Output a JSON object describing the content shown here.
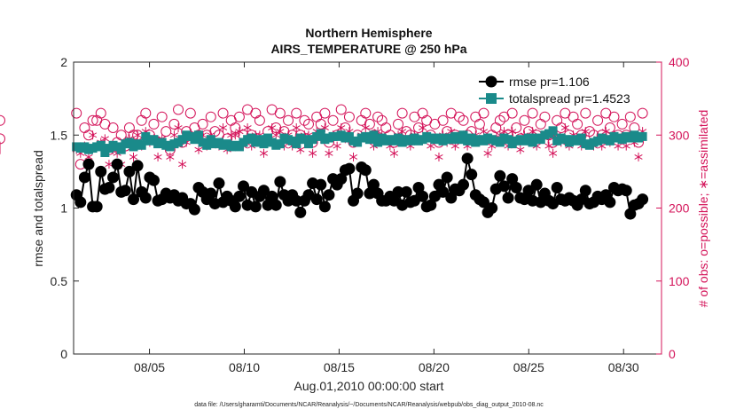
{
  "chart_data": {
    "type": "line",
    "title": "Northern Hemisphere",
    "subtitle": "AIRS_TEMPERATURE @ 250 hPa",
    "xlabel": "Aug.01,2010 00:00:00 start",
    "ylabel": "rmse and totalspread",
    "y2label": "# of obs: o=possible; ∗=assimilated",
    "footnote": "data file: /Users/gharamti/Documents/NCAR/Reanalysis/~/Documents/NCAR/Reanalysis/webpub/obs_diag_output_2010-08.nc",
    "xlim": [
      1,
      32
    ],
    "ylim": [
      0,
      2
    ],
    "y2lim": [
      0,
      400
    ],
    "xticks": [
      5,
      10,
      15,
      20,
      25,
      30
    ],
    "xticklabels": [
      "08/05",
      "08/10",
      "08/15",
      "08/20",
      "08/25",
      "08/30"
    ],
    "yticks": [
      0,
      0.5,
      1,
      1.5,
      2
    ],
    "yticklabels": [
      "0",
      "0.5",
      "1",
      "1.5",
      "2"
    ],
    "y2ticks": [
      0,
      100,
      200,
      300,
      400
    ],
    "y2ticklabels": [
      "0",
      "100",
      "200",
      "300",
      "400"
    ],
    "legend_position": "top-right",
    "colors": {
      "rmse": "#000000",
      "spread": "#1a8a8a",
      "obs": "#d4145a"
    },
    "series": [
      {
        "name": "rmse pr=1.106",
        "axis": "left",
        "marker": "filled-circle"
      },
      {
        "name": "totalspread pr=1.4523",
        "axis": "left",
        "marker": "filled-square"
      }
    ],
    "rmse_values": [
      1.09,
      1.04,
      1.21,
      1.3,
      1.01,
      1.01,
      1.25,
      1.13,
      1.14,
      1.21,
      1.3,
      1.11,
      1.12,
      1.25,
      1.06,
      1.29,
      1.11,
      1.07,
      1.21,
      1.19,
      1.05,
      1.06,
      1.1,
      1.07,
      1.09,
      1.05,
      1.07,
      1.03,
      1.03,
      0.99,
      1.14,
      1.11,
      1.06,
      1.1,
      1.03,
      1.17,
      1.04,
      1.08,
      1.05,
      1.01,
      1.08,
      1.15,
      1.02,
      1.11,
      1.01,
      1.08,
      1.12,
      1.02,
      1.08,
      1.02,
      1.18,
      1.09,
      1.05,
      1.09,
      1.05,
      0.97,
      1.05,
      1.09,
      1.17,
      1.06,
      1.16,
      1.01,
      1.09,
      1.2,
      1.16,
      1.2,
      1.26,
      1.27,
      1.05,
      1.1,
      1.28,
      1.26,
      1.1,
      1.16,
      1.1,
      1.05,
      1.05,
      1.08,
      1.05,
      1.11,
      1.02,
      1.11,
      1.04,
      1.05,
      1.14,
      1.08,
      1.01,
      1.02,
      1.08,
      1.16,
      1.11,
      1.21,
      1.07,
      1.13,
      1.12,
      1.16,
      1.34,
      1.23,
      1.09,
      1.06,
      1.04,
      0.97,
      1.0,
      1.13,
      1.22,
      1.15,
      1.07,
      1.2,
      1.14,
      1.07,
      1.06,
      1.12,
      1.05,
      1.16,
      1.04,
      1.1,
      1.05,
      1.03,
      1.14,
      1.06,
      1.05,
      1.07,
      1.05,
      1.02,
      1.06,
      1.12,
      1.03,
      1.04,
      1.08,
      1.06,
      1.09,
      1.04,
      1.14,
      1.12,
      1.13,
      1.12,
      0.96,
      1.02,
      1.03,
      1.06
    ],
    "spread_values": [
      1.42,
      1.41,
      1.42,
      1.4,
      1.41,
      1.42,
      1.43,
      1.38,
      1.41,
      1.43,
      1.42,
      1.4,
      1.44,
      1.45,
      1.42,
      1.44,
      1.43,
      1.49,
      1.46,
      1.47,
      1.44,
      1.45,
      1.43,
      1.42,
      1.44,
      1.45,
      1.47,
      1.5,
      1.49,
      1.47,
      1.5,
      1.45,
      1.43,
      1.47,
      1.44,
      1.45,
      1.43,
      1.44,
      1.42,
      1.43,
      1.42,
      1.45,
      1.47,
      1.48,
      1.45,
      1.47,
      1.44,
      1.48,
      1.45,
      1.43,
      1.44,
      1.48,
      1.47,
      1.46,
      1.44,
      1.48,
      1.47,
      1.44,
      1.47,
      1.49,
      1.51,
      1.47,
      1.48,
      1.49,
      1.49,
      1.5,
      1.48,
      1.49,
      1.46,
      1.45,
      1.48,
      1.49,
      1.47,
      1.5,
      1.45,
      1.48,
      1.46,
      1.47,
      1.46,
      1.48,
      1.45,
      1.47,
      1.46,
      1.48,
      1.46,
      1.47,
      1.49,
      1.48,
      1.47,
      1.48,
      1.46,
      1.48,
      1.47,
      1.49,
      1.47,
      1.5,
      1.46,
      1.48,
      1.45,
      1.47,
      1.46,
      1.48,
      1.47,
      1.46,
      1.45,
      1.48,
      1.47,
      1.44,
      1.46,
      1.47,
      1.46,
      1.48,
      1.45,
      1.48,
      1.47,
      1.5,
      1.51,
      1.53,
      1.46,
      1.48,
      1.47,
      1.45,
      1.47,
      1.46,
      1.48,
      1.44,
      1.43,
      1.45,
      1.46,
      1.48,
      1.47,
      1.46,
      1.49,
      1.48,
      1.47,
      1.49,
      1.48,
      1.5,
      1.48,
      1.49
    ],
    "possible_values": [
      330,
      260,
      310,
      300,
      320,
      320,
      330,
      315,
      280,
      310,
      290,
      300,
      285,
      310,
      300,
      300,
      320,
      330,
      300,
      315,
      290,
      325,
      305,
      280,
      315,
      335,
      290,
      305,
      330,
      310,
      300,
      315,
      300,
      325,
      305,
      300,
      330,
      295,
      320,
      310,
      325,
      300,
      335,
      300,
      330,
      320,
      290,
      305,
      335,
      310,
      330,
      305,
      320,
      300,
      330,
      300,
      320,
      315,
      290,
      325,
      315,
      330,
      290,
      320,
      300,
      335,
      310,
      325,
      290,
      300,
      320,
      330,
      315,
      300,
      325,
      320,
      310,
      300,
      290,
      315,
      330,
      305,
      300,
      325,
      310,
      330,
      320,
      300,
      315,
      290,
      320,
      305,
      330,
      300,
      325,
      320,
      300,
      305,
      325,
      315,
      330,
      295,
      300,
      310,
      320,
      325,
      300,
      330,
      310,
      295,
      320,
      305,
      330,
      300,
      315,
      325,
      300,
      290,
      320,
      310,
      330,
      300,
      325,
      315,
      300,
      330,
      305,
      300,
      320,
      300,
      330,
      310,
      325,
      300,
      315,
      300,
      325,
      310,
      290,
      330,
      295,
      320
    ],
    "assimilated_values": [
      280,
      275,
      285,
      270,
      300,
      285,
      290,
      295,
      260,
      280,
      275,
      260,
      290,
      295,
      270,
      300,
      285,
      305,
      290,
      295,
      270,
      295,
      285,
      270,
      300,
      310,
      260,
      290,
      300,
      295,
      280,
      300,
      285,
      300,
      290,
      285,
      310,
      280,
      300,
      300,
      305,
      285,
      310,
      285,
      300,
      300,
      275,
      290,
      310,
      300,
      305,
      285,
      300,
      285,
      310,
      280,
      300,
      300,
      275,
      305,
      295,
      310,
      275,
      300,
      285,
      310,
      295,
      305,
      270,
      290,
      300,
      310,
      300,
      285,
      305,
      300,
      295,
      285,
      275,
      300,
      305,
      290,
      285,
      300,
      295,
      310,
      300,
      285,
      295,
      270,
      300,
      290,
      305,
      285,
      300,
      300,
      285,
      290,
      300,
      295,
      305,
      275,
      285,
      290,
      300,
      305,
      285,
      305,
      290,
      280,
      300,
      290,
      305,
      285,
      295,
      300,
      285,
      275,
      300,
      290,
      310,
      285,
      300,
      295,
      285,
      305,
      290,
      285,
      295,
      285,
      305,
      290,
      300,
      285,
      295,
      285,
      300,
      290,
      270,
      305,
      280,
      285
    ]
  }
}
